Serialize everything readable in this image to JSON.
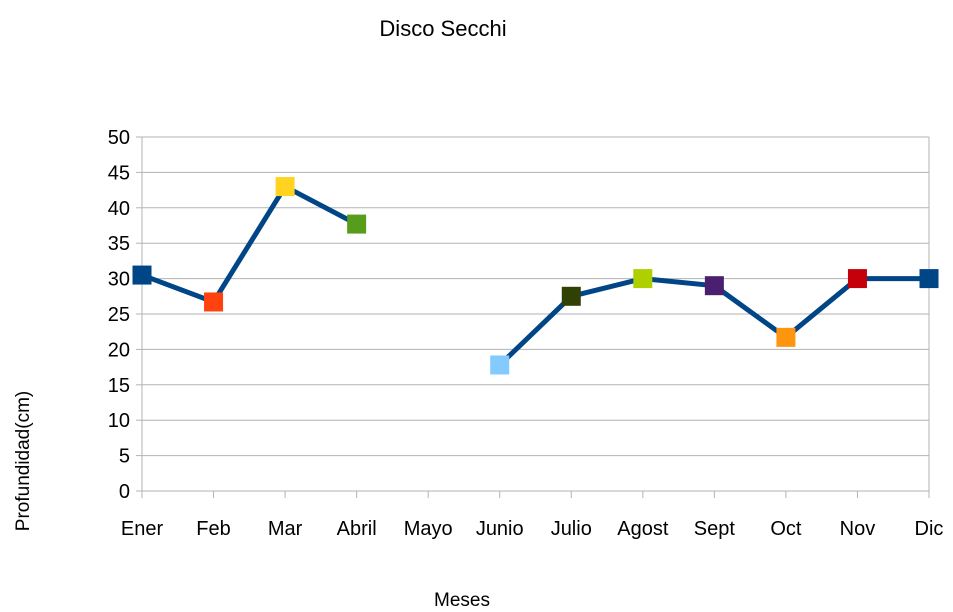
{
  "chart_data": {
    "type": "line",
    "title": "Disco Secchi",
    "xlabel": "Meses",
    "ylabel": "Profundidad(cm)",
    "categories": [
      "Ener",
      "Feb",
      "Mar",
      "Abril",
      "Mayo",
      "Junio",
      "Julio",
      "Agost",
      "Sept",
      "Oct",
      "Nov",
      "Dic"
    ],
    "ylim": [
      0,
      50
    ],
    "yticks": [
      0,
      5,
      10,
      15,
      20,
      25,
      30,
      35,
      40,
      45,
      50
    ],
    "grid": true,
    "line_color": "#004586",
    "series": [
      {
        "values": [
          30.5,
          26.7,
          43,
          37.7,
          null,
          17.8,
          27.5,
          30,
          29,
          21.7,
          30,
          30
        ],
        "marker_colors": [
          "#004586",
          "#FF420E",
          "#FFD320",
          "#579D1C",
          "#7E0021",
          "#83CAFF",
          "#314004",
          "#AECF00",
          "#4B1F6F",
          "#FF950E",
          "#C5000B",
          "#004586"
        ]
      }
    ]
  }
}
